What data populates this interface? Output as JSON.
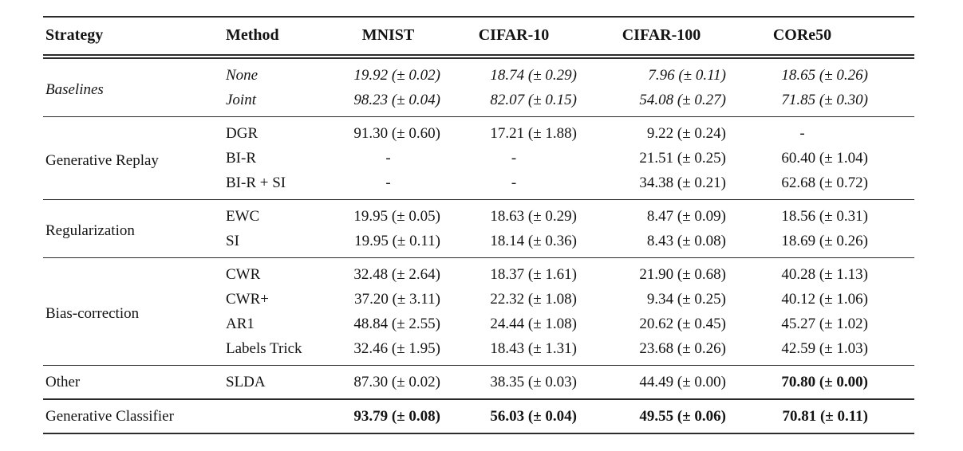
{
  "table": {
    "columns": {
      "strategy": "Strategy",
      "method": "Method",
      "mnist": "MNIST",
      "cifar10": "CIFAR-10",
      "cifar100": "CIFAR-100",
      "core50": "CORe50"
    },
    "groups": [
      {
        "strategy": "Baselines",
        "rows": [
          {
            "method": "None",
            "values": [
              "19.92 (± 0.02)",
              "18.74 (± 0.29)",
              "7.96 (± 0.11)",
              "18.65 (± 0.26)"
            ]
          },
          {
            "method": "Joint",
            "values": [
              "98.23 (± 0.04)",
              "82.07 (± 0.15)",
              "54.08 (± 0.27)",
              "71.85 (± 0.30)"
            ]
          }
        ]
      },
      {
        "strategy": "Generative Replay",
        "rows": [
          {
            "method": "DGR",
            "values": [
              "91.30 (± 0.60)",
              "17.21 (± 1.88)",
              "9.22 (± 0.24)",
              "-"
            ]
          },
          {
            "method": "BI-R",
            "values": [
              "-",
              "-",
              "21.51 (± 0.25)",
              "60.40 (± 1.04)"
            ]
          },
          {
            "method": "BI-R + SI",
            "values": [
              "-",
              "-",
              "34.38 (± 0.21)",
              "62.68 (± 0.72)"
            ]
          }
        ]
      },
      {
        "strategy": "Regularization",
        "rows": [
          {
            "method": "EWC",
            "values": [
              "19.95 (± 0.05)",
              "18.63 (± 0.29)",
              "8.47 (± 0.09)",
              "18.56 (± 0.31)"
            ]
          },
          {
            "method": "SI",
            "values": [
              "19.95 (± 0.11)",
              "18.14 (± 0.36)",
              "8.43 (± 0.08)",
              "18.69 (± 0.26)"
            ]
          }
        ]
      },
      {
        "strategy": "Bias-correction",
        "rows": [
          {
            "method": "CWR",
            "values": [
              "32.48 (± 2.64)",
              "18.37 (± 1.61)",
              "21.90 (± 0.68)",
              "40.28 (± 1.13)"
            ]
          },
          {
            "method": "CWR+",
            "values": [
              "37.20 (± 3.11)",
              "22.32 (± 1.08)",
              "9.34 (± 0.25)",
              "40.12 (± 1.06)"
            ]
          },
          {
            "method": "AR1",
            "values": [
              "48.84 (± 2.55)",
              "24.44 (± 1.08)",
              "20.62 (± 0.45)",
              "45.27 (± 1.02)"
            ]
          },
          {
            "method": "Labels Trick",
            "values": [
              "32.46 (± 1.95)",
              "18.43 (± 1.31)",
              "23.68 (± 0.26)",
              "42.59 (± 1.03)"
            ]
          }
        ]
      },
      {
        "strategy": "Other",
        "rows": [
          {
            "method": "SLDA",
            "values": [
              "87.30 (± 0.02)",
              "38.35 (± 0.03)",
              "44.49 (± 0.00)",
              "70.80 (± 0.00)"
            ]
          }
        ]
      },
      {
        "strategy": "Generative Classifier",
        "rows": [
          {
            "method": "",
            "values": [
              "93.79 (± 0.08)",
              "56.03 (± 0.04)",
              "49.55 (± 0.06)",
              "70.81 (± 0.11)"
            ]
          }
        ]
      }
    ]
  }
}
